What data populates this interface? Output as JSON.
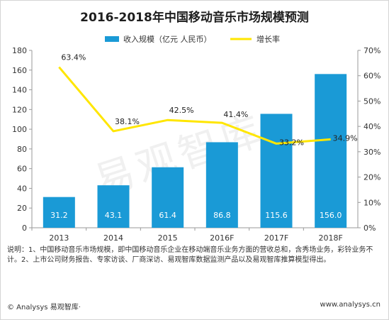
{
  "chart_data": {
    "type": "bar",
    "title": "2016-2018年中国移动音乐市场规模预测",
    "categories": [
      "2013",
      "2014",
      "2015",
      "2016F",
      "2017F",
      "2018F"
    ],
    "series": [
      {
        "name": "收入规模（亿元 人民币）",
        "type": "bar",
        "axis": "left",
        "values": [
          31.2,
          43.1,
          61.4,
          86.8,
          115.6,
          156.0
        ],
        "labels": [
          "31.2",
          "43.1",
          "61.4",
          "86.8",
          "115.6",
          "156.0"
        ],
        "color": "#1a9ad6"
      },
      {
        "name": "增长率",
        "type": "line",
        "axis": "right",
        "values": [
          63.4,
          38.1,
          42.5,
          41.4,
          33.2,
          34.9
        ],
        "labels": [
          "63.4%",
          "38.1%",
          "42.5%",
          "41.4%",
          "33.2%",
          "34.9%"
        ],
        "color": "#ffe600"
      }
    ],
    "y_left": {
      "min": 0,
      "max": 180,
      "step": 20,
      "ticks": [
        "0",
        "20",
        "40",
        "60",
        "80",
        "100",
        "120",
        "140",
        "160",
        "180"
      ]
    },
    "y_right": {
      "min": 0,
      "max": 70,
      "step": 10,
      "ticks": [
        "0%",
        "10%",
        "20%",
        "30%",
        "40%",
        "50%",
        "60%",
        "70%"
      ]
    },
    "xlabel": "",
    "ylabel": "",
    "grid": false,
    "legend": "top"
  },
  "notes": "说明：1、中国移动音乐市场规模，即中国移动音乐企业在移动端音乐业务方面的营收总和，含秀场业务，彩铃业务不计。2、上市公司财务报告、专家访谈、厂商深访、易观智库数据监测产品以及易观智库推算模型得出。",
  "footer": {
    "left": "© Analysys 易观智库·",
    "right": "www.analysys.cn"
  },
  "watermark": "易观智库"
}
